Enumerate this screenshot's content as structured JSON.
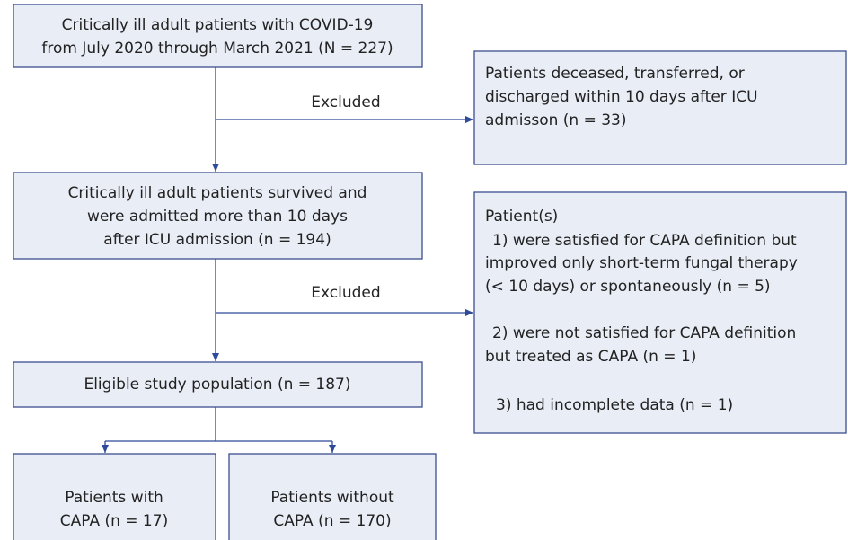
{
  "nodes": [
    {
      "lines": [
        "Critically ill adult patients with COVID-19",
        "from July 2020 through March 2021 (N = 227)"
      ]
    },
    {
      "lines": [
        "Patients deceased, transferred, or",
        "discharged within 10 days after ICU",
        "admisson (n = 33)"
      ]
    },
    {
      "lines": [
        "Critically ill adult patients survived and",
        "were admitted more than 10 days",
        "after ICU admission (n = 194)"
      ]
    },
    {
      "lines": [
        "Patient(s)",
        "1) were satisfied for CAPA definition but",
        "improved only short-term fungal therapy",
        "(< 10 days) or spontaneously (n = 5)",
        "2) were not satisfied for CAPA definition",
        "but treated as CAPA (n = 1)",
        "3) had incomplete data (n = 1)"
      ]
    },
    {
      "lines": [
        "Eligible study population (n = 187)"
      ]
    },
    {
      "lines": [
        "Patients with",
        "CAPA (n = 17)"
      ]
    },
    {
      "lines": [
        "Patients without",
        "CAPA (n = 170)"
      ]
    }
  ],
  "edges": [
    {
      "label": "Excluded"
    },
    {
      "label": "Excluded"
    }
  ]
}
